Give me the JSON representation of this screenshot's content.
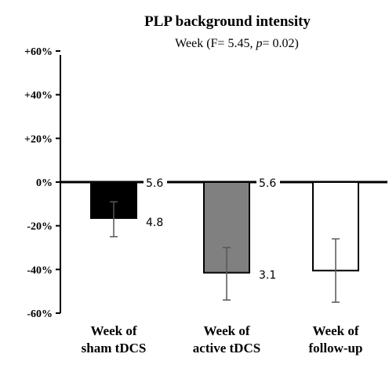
{
  "chart_data": {
    "type": "bar",
    "title": "PLP background intensity",
    "subtitle_prefix": "Week (F= 5.45, ",
    "subtitle_p": "p",
    "subtitle_suffix": "= 0.02)",
    "y_ticks": [
      "+60%",
      "+40%",
      "+20%",
      "0%",
      "-20%",
      "-40%",
      "-60%"
    ],
    "ylim": [
      -60,
      60
    ],
    "categories": [
      [
        "Week of",
        "sham tDCS"
      ],
      [
        "Week of",
        "active tDCS"
      ],
      [
        "Week of",
        "follow-up"
      ]
    ],
    "values": [
      -16.5,
      -41.5,
      -40.5
    ],
    "error_low": [
      -25,
      -54,
      -55
    ],
    "error_high": [
      -9,
      -30,
      -26
    ],
    "bar_colors": [
      "#000000",
      "#808080",
      "#ffffff"
    ],
    "annotations": [
      {
        "text": "5.6",
        "near_bar": 0,
        "y": 0
      },
      {
        "text": "4.8",
        "near_bar": 0,
        "y": -18
      },
      {
        "text": "5.6",
        "near_bar": 1,
        "y": 0
      },
      {
        "text": "3.1",
        "near_bar": 1,
        "y": -42
      }
    ]
  }
}
